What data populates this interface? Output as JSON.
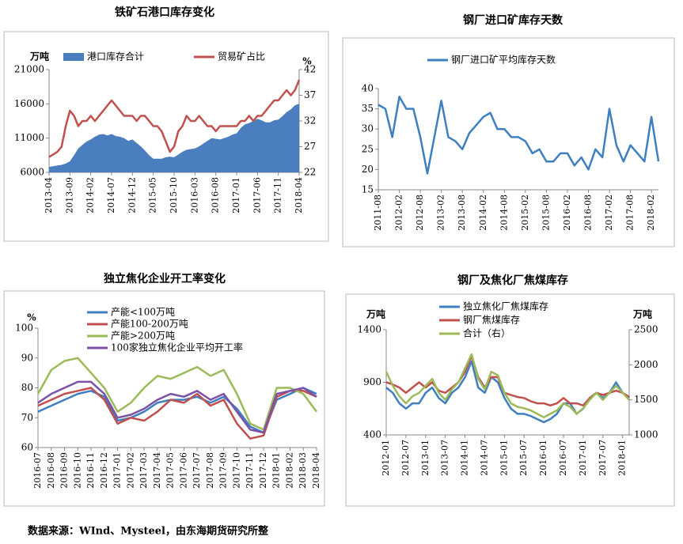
{
  "chart_data": [
    {
      "type": "line",
      "title": "铁矿石港口库存变化",
      "y_unit": "万吨",
      "y2_unit": "%",
      "categories": [
        "2013-04",
        null,
        null,
        null,
        null,
        "2013-09",
        null,
        null,
        null,
        null,
        "2014-02",
        null,
        null,
        null,
        null,
        "2014-07",
        null,
        null,
        null,
        null,
        "2014-12",
        null,
        null,
        null,
        null,
        "2015-05",
        null,
        null,
        null,
        null,
        "2015-10",
        null,
        null,
        null,
        null,
        "2016-03",
        null,
        null,
        null,
        null,
        "2016-08",
        null,
        null,
        null,
        null,
        "2017-01",
        null,
        null,
        null,
        null,
        "2017-06",
        null,
        null,
        null,
        null,
        "2017-11",
        null,
        null,
        null,
        null,
        "2018-04"
      ],
      "ylim": [
        6000,
        21000
      ],
      "yticks": [
        6000,
        11000,
        16000,
        21000
      ],
      "y2lim": [
        22,
        42
      ],
      "y2ticks": [
        22,
        27,
        32,
        37,
        42
      ],
      "series": [
        {
          "name": "港口库存合计",
          "type": "area",
          "color": "#4a7ebf",
          "values": [
            6800,
            6900,
            7000,
            7100,
            7300,
            7600,
            8500,
            9500,
            10000,
            10500,
            10800,
            11200,
            11500,
            11600,
            11400,
            11600,
            11300,
            11200,
            11000,
            10600,
            10800,
            10300,
            9800,
            9200,
            8500,
            8000,
            8000,
            8000,
            8200,
            8300,
            8200,
            8600,
            9000,
            9300,
            9400,
            9500,
            9800,
            10200,
            10600,
            11000,
            10900,
            10800,
            11000,
            11200,
            11500,
            11700,
            12500,
            13000,
            13200,
            13500,
            13800,
            13600,
            13300,
            13300,
            13600,
            13700,
            14200,
            14800,
            15200,
            15800,
            16000
          ]
        },
        {
          "name": "贸易矿占比",
          "type": "line",
          "axis": "y2",
          "color": "#c0504d",
          "values": [
            25,
            25.5,
            26,
            27,
            31,
            34,
            33,
            31,
            32,
            32,
            33,
            32,
            33,
            34,
            35,
            36,
            35,
            34,
            33,
            33,
            33,
            32,
            33,
            33,
            32,
            31,
            31,
            30,
            28,
            26,
            27,
            30,
            31,
            33,
            32,
            32,
            33,
            32,
            31,
            31,
            30,
            31,
            31,
            31,
            31,
            31,
            32,
            32,
            33,
            32,
            33,
            33,
            34,
            35,
            36,
            36,
            37,
            38,
            37,
            38,
            40
          ]
        }
      ]
    },
    {
      "type": "line",
      "title": "钢厂进口矿库存天数",
      "categories": [
        "2011-08",
        null,
        null,
        "2012-02",
        null,
        null,
        "2012-08",
        null,
        null,
        "2013-02",
        null,
        null,
        "2013-08",
        null,
        null,
        "2014-02",
        null,
        null,
        "2014-08",
        null,
        null,
        "2015-02",
        null,
        null,
        "2015-08",
        null,
        null,
        "2016-02",
        null,
        null,
        "2016-08",
        null,
        null,
        "2017-02",
        null,
        null,
        "2017-08",
        null,
        null,
        "2018-02",
        null
      ],
      "ylim": [
        15,
        40
      ],
      "yticks": [
        15,
        20,
        25,
        30,
        35,
        40
      ],
      "series": [
        {
          "name": "钢厂进口矿平均库存天数",
          "type": "line",
          "color": "#3f7fc0",
          "values": [
            36,
            35,
            28,
            38,
            35,
            35,
            28,
            19,
            28,
            37,
            28,
            27,
            25,
            29,
            31,
            33,
            34,
            30,
            30,
            28,
            28,
            27,
            24,
            25,
            22,
            22,
            24,
            24,
            21,
            23,
            20,
            25,
            23,
            35,
            26,
            22,
            26,
            24,
            22,
            33,
            22
          ]
        }
      ]
    },
    {
      "type": "line",
      "title": "独立焦化企业开工率变化",
      "y_unit": "%",
      "categories": [
        "2016-07",
        "2016-08",
        "2016-09",
        "2016-10",
        "2016-11",
        "2016-12",
        "2017-01",
        "2017-02",
        "2017-03",
        "2017-04",
        "2017-05",
        "2017-06",
        "2017-07",
        "2017-08",
        "2017-09",
        "2017-10",
        "2017-11",
        "2017-12",
        "2018-01",
        "2018-02",
        "2018-03",
        "2018-04"
      ],
      "ylim": [
        60,
        100
      ],
      "yticks": [
        60,
        70,
        80,
        90,
        100
      ],
      "series": [
        {
          "name": "产能<100万吨",
          "type": "line",
          "color": "#3f7fc0",
          "values": [
            72,
            74,
            76,
            78,
            79,
            77,
            69,
            70,
            72,
            75,
            76,
            76,
            77,
            75,
            77,
            73,
            67,
            65,
            76,
            78,
            80,
            78
          ]
        },
        {
          "name": "产能100-200万吨",
          "type": "line",
          "color": "#c0504d",
          "values": [
            74,
            76,
            78,
            79,
            80,
            76,
            68,
            70,
            69,
            72,
            76,
            75,
            78,
            74,
            76,
            68,
            63,
            64,
            77,
            79,
            79,
            77
          ]
        },
        {
          "name": "产能>200万吨",
          "type": "line",
          "color": "#9bbb59",
          "values": [
            78,
            86,
            89,
            90,
            85,
            80,
            72,
            75,
            80,
            84,
            83,
            85,
            87,
            84,
            86,
            78,
            68,
            66,
            80,
            80,
            78,
            72
          ]
        },
        {
          "name": "100家独立焦化企业平均开工率",
          "type": "line",
          "color": "#7b52a8",
          "values": [
            75,
            78,
            80,
            82,
            82,
            78,
            70,
            71,
            73,
            76,
            78,
            77,
            79,
            76,
            78,
            72,
            66,
            65,
            78,
            79,
            80,
            77
          ]
        }
      ]
    },
    {
      "type": "line",
      "title": "钢厂及焦化厂焦煤库存",
      "y_unit": "万吨",
      "y2_unit": "万吨",
      "categories": [
        "2012-01",
        null,
        null,
        "2012-07",
        null,
        null,
        "2013-01",
        null,
        null,
        "2013-07",
        null,
        null,
        "2014-01",
        null,
        null,
        "2014-07",
        null,
        null,
        "2015-01",
        null,
        null,
        "2015-07",
        null,
        null,
        "2016-01",
        null,
        null,
        "2016-07",
        null,
        null,
        "2017-01",
        null,
        null,
        "2017-07",
        null,
        null,
        "2018-01",
        null
      ],
      "ylim": [
        400,
        1400
      ],
      "yticks": [
        400,
        900,
        1400
      ],
      "y2lim": [
        1000,
        2500
      ],
      "y2ticks": [
        1000,
        1500,
        2000,
        2500
      ],
      "series": [
        {
          "name": "独立焦化厂焦煤库存",
          "type": "line",
          "color": "#3f7fc0",
          "values": [
            850,
            800,
            700,
            650,
            700,
            700,
            800,
            850,
            750,
            700,
            800,
            850,
            950,
            1100,
            850,
            800,
            950,
            900,
            750,
            650,
            600,
            600,
            580,
            550,
            520,
            550,
            600,
            700,
            700,
            600,
            650,
            750,
            800,
            750,
            800,
            900,
            800,
            750
          ]
        },
        {
          "name": "钢厂焦煤库存",
          "type": "line",
          "color": "#c0504d",
          "values": [
            900,
            880,
            850,
            800,
            850,
            900,
            850,
            900,
            820,
            800,
            850,
            900,
            1000,
            1150,
            950,
            850,
            950,
            950,
            800,
            780,
            760,
            750,
            720,
            700,
            700,
            680,
            700,
            750,
            700,
            700,
            680,
            750,
            800,
            780,
            800,
            820,
            800,
            760
          ]
        },
        {
          "name": "合计（右）",
          "type": "line",
          "axis": "y2",
          "color": "#9bbb59",
          "values": [
            1900,
            1700,
            1550,
            1450,
            1550,
            1600,
            1700,
            1800,
            1600,
            1500,
            1650,
            1750,
            1950,
            2150,
            1800,
            1650,
            1900,
            1850,
            1600,
            1450,
            1400,
            1380,
            1350,
            1300,
            1250,
            1300,
            1350,
            1450,
            1400,
            1300,
            1380,
            1500,
            1600,
            1500,
            1600,
            1700,
            1600,
            1500
          ]
        }
      ]
    }
  ],
  "source": "数据来源：WInd、Mysteel，由东海期货研究所整"
}
